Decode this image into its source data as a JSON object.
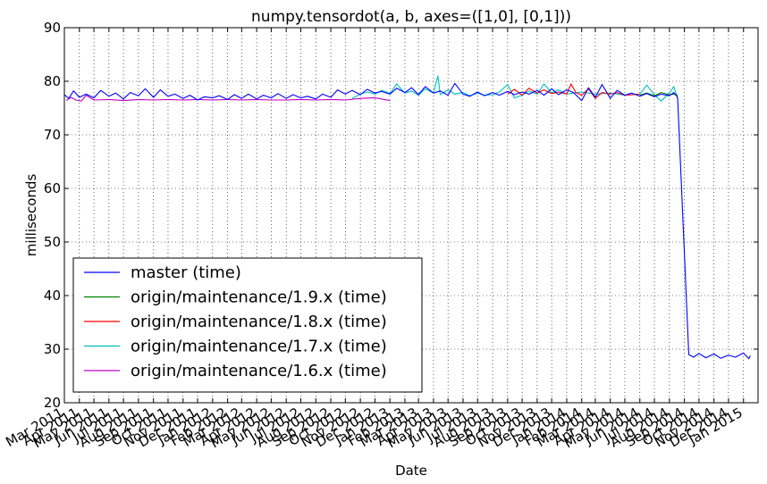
{
  "chart_data": {
    "type": "line",
    "title": "numpy.tensordot(a, b, axes=([1,0], [0,1]))",
    "xlabel": "Date",
    "ylabel": "milliseconds",
    "ylim": [
      20,
      90
    ],
    "yticks": [
      20,
      30,
      40,
      50,
      60,
      70,
      80,
      90
    ],
    "xlim": [
      "2011-03-01",
      "2015-01-31"
    ],
    "xticks": [
      {
        "date": "2011-03-01",
        "label": "Mar 2011"
      },
      {
        "date": "2011-04-01",
        "label": "Apr 2011"
      },
      {
        "date": "2011-05-01",
        "label": "May 2011"
      },
      {
        "date": "2011-06-01",
        "label": "Jun 2011"
      },
      {
        "date": "2011-07-01",
        "label": "Jul 2011"
      },
      {
        "date": "2011-08-01",
        "label": "Aug 2011"
      },
      {
        "date": "2011-09-01",
        "label": "Sep 2011"
      },
      {
        "date": "2011-10-01",
        "label": "Oct 2011"
      },
      {
        "date": "2011-11-01",
        "label": "Nov 2011"
      },
      {
        "date": "2011-12-01",
        "label": "Dec 2011"
      },
      {
        "date": "2012-01-01",
        "label": "Jan 2012"
      },
      {
        "date": "2012-02-01",
        "label": "Feb 2012"
      },
      {
        "date": "2012-03-01",
        "label": "Mar 2012"
      },
      {
        "date": "2012-04-01",
        "label": "Apr 2012"
      },
      {
        "date": "2012-05-01",
        "label": "May 2012"
      },
      {
        "date": "2012-06-01",
        "label": "Jun 2012"
      },
      {
        "date": "2012-07-01",
        "label": "Jul 2012"
      },
      {
        "date": "2012-08-01",
        "label": "Aug 2012"
      },
      {
        "date": "2012-09-01",
        "label": "Sep 2012"
      },
      {
        "date": "2012-10-01",
        "label": "Oct 2012"
      },
      {
        "date": "2012-11-01",
        "label": "Nov 2012"
      },
      {
        "date": "2012-12-01",
        "label": "Dec 2012"
      },
      {
        "date": "2013-01-01",
        "label": "Jan 2013"
      },
      {
        "date": "2013-02-01",
        "label": "Feb 2013"
      },
      {
        "date": "2013-03-01",
        "label": "Mar 2013"
      },
      {
        "date": "2013-04-01",
        "label": "Apr 2013"
      },
      {
        "date": "2013-05-01",
        "label": "May 2013"
      },
      {
        "date": "2013-06-01",
        "label": "Jun 2013"
      },
      {
        "date": "2013-07-01",
        "label": "Jul 2013"
      },
      {
        "date": "2013-08-01",
        "label": "Aug 2013"
      },
      {
        "date": "2013-09-01",
        "label": "Sep 2013"
      },
      {
        "date": "2013-10-01",
        "label": "Oct 2013"
      },
      {
        "date": "2013-11-01",
        "label": "Nov 2013"
      },
      {
        "date": "2013-12-01",
        "label": "Dec 2013"
      },
      {
        "date": "2014-01-01",
        "label": "Jan 2014"
      },
      {
        "date": "2014-02-01",
        "label": "Feb 2014"
      },
      {
        "date": "2014-03-01",
        "label": "Mar 2014"
      },
      {
        "date": "2014-04-01",
        "label": "Apr 2014"
      },
      {
        "date": "2014-05-01",
        "label": "May 2014"
      },
      {
        "date": "2014-06-01",
        "label": "Jun 2014"
      },
      {
        "date": "2014-07-01",
        "label": "Jul 2014"
      },
      {
        "date": "2014-08-01",
        "label": "Aug 2014"
      },
      {
        "date": "2014-09-01",
        "label": "Sep 2014"
      },
      {
        "date": "2014-10-01",
        "label": "Oct 2014"
      },
      {
        "date": "2014-11-01",
        "label": "Nov 2014"
      },
      {
        "date": "2014-12-01",
        "label": "Dec 2014"
      },
      {
        "date": "2015-01-01",
        "label": "Jan 2015"
      }
    ],
    "grid": true,
    "legend_position": "lower-left",
    "series": [
      {
        "name": "master (time)",
        "color": "#0000ff",
        "points": [
          [
            "2011-03-01",
            77.5
          ],
          [
            "2011-03-10",
            76.8
          ],
          [
            "2011-03-20",
            78.2
          ],
          [
            "2011-04-01",
            77.0
          ],
          [
            "2011-04-15",
            77.6
          ],
          [
            "2011-05-01",
            76.9
          ],
          [
            "2011-05-15",
            78.3
          ],
          [
            "2011-06-01",
            77.2
          ],
          [
            "2011-06-15",
            77.8
          ],
          [
            "2011-07-01",
            76.7
          ],
          [
            "2011-07-15",
            77.9
          ],
          [
            "2011-08-01",
            77.3
          ],
          [
            "2011-08-15",
            78.6
          ],
          [
            "2011-09-01",
            77.0
          ],
          [
            "2011-09-15",
            78.4
          ],
          [
            "2011-10-01",
            77.2
          ],
          [
            "2011-10-15",
            77.6
          ],
          [
            "2011-11-01",
            76.8
          ],
          [
            "2011-11-15",
            77.4
          ],
          [
            "2011-12-01",
            76.5
          ],
          [
            "2011-12-15",
            77.1
          ],
          [
            "2012-01-01",
            76.9
          ],
          [
            "2012-01-15",
            77.3
          ],
          [
            "2012-02-01",
            76.6
          ],
          [
            "2012-02-15",
            77.5
          ],
          [
            "2012-03-01",
            76.8
          ],
          [
            "2012-03-15",
            77.6
          ],
          [
            "2012-04-01",
            76.7
          ],
          [
            "2012-04-15",
            77.4
          ],
          [
            "2012-05-01",
            76.9
          ],
          [
            "2012-05-15",
            77.7
          ],
          [
            "2012-06-01",
            76.8
          ],
          [
            "2012-06-15",
            77.5
          ],
          [
            "2012-07-01",
            76.9
          ],
          [
            "2012-07-15",
            77.2
          ],
          [
            "2012-08-01",
            76.7
          ],
          [
            "2012-08-15",
            77.6
          ],
          [
            "2012-09-01",
            77.0
          ],
          [
            "2012-09-15",
            78.4
          ],
          [
            "2012-10-01",
            77.6
          ],
          [
            "2012-10-15",
            78.3
          ],
          [
            "2012-11-01",
            77.5
          ],
          [
            "2012-11-15",
            78.5
          ],
          [
            "2012-12-01",
            77.8
          ],
          [
            "2012-12-15",
            78.1
          ],
          [
            "2013-01-01",
            77.6
          ],
          [
            "2013-01-15",
            78.7
          ],
          [
            "2013-02-01",
            77.9
          ],
          [
            "2013-02-15",
            78.8
          ],
          [
            "2013-03-01",
            77.5
          ],
          [
            "2013-03-15",
            79.0
          ],
          [
            "2013-04-01",
            77.8
          ],
          [
            "2013-04-15",
            78.2
          ],
          [
            "2013-05-01",
            77.4
          ],
          [
            "2013-05-15",
            79.6
          ],
          [
            "2013-06-01",
            77.6
          ],
          [
            "2013-06-15",
            77.2
          ],
          [
            "2013-07-01",
            78.0
          ],
          [
            "2013-07-15",
            77.3
          ],
          [
            "2013-08-01",
            77.9
          ],
          [
            "2013-08-15",
            77.4
          ],
          [
            "2013-09-01",
            78.1
          ],
          [
            "2013-09-15",
            77.5
          ],
          [
            "2013-10-01",
            78.0
          ],
          [
            "2013-10-15",
            77.6
          ],
          [
            "2013-11-01",
            78.3
          ],
          [
            "2013-11-15",
            77.4
          ],
          [
            "2013-12-01",
            78.6
          ],
          [
            "2013-12-15",
            77.5
          ],
          [
            "2014-01-01",
            78.4
          ],
          [
            "2014-01-15",
            77.9
          ],
          [
            "2014-02-01",
            76.4
          ],
          [
            "2014-02-15",
            78.8
          ],
          [
            "2014-03-01",
            77.0
          ],
          [
            "2014-03-15",
            79.4
          ],
          [
            "2014-04-01",
            76.8
          ],
          [
            "2014-04-15",
            78.3
          ],
          [
            "2014-05-01",
            77.4
          ],
          [
            "2014-05-15",
            77.8
          ],
          [
            "2014-06-01",
            77.2
          ],
          [
            "2014-06-15",
            77.7
          ],
          [
            "2014-07-01",
            77.1
          ],
          [
            "2014-07-15",
            77.6
          ],
          [
            "2014-08-01",
            77.3
          ],
          [
            "2014-08-10",
            77.9
          ],
          [
            "2014-08-18",
            77.0
          ],
          [
            "2014-09-10",
            29.0
          ],
          [
            "2014-09-20",
            28.5
          ],
          [
            "2014-10-01",
            29.2
          ],
          [
            "2014-10-15",
            28.4
          ],
          [
            "2014-11-01",
            29.1
          ],
          [
            "2014-11-15",
            28.3
          ],
          [
            "2014-12-01",
            28.9
          ],
          [
            "2014-12-15",
            28.5
          ],
          [
            "2015-01-01",
            29.3
          ],
          [
            "2015-01-12",
            28.2
          ],
          [
            "2015-01-15",
            28.8
          ]
        ]
      },
      {
        "name": "origin/maintenance/1.9.x (time)",
        "color": "#008000",
        "points": [
          [
            "2014-06-01",
            77.4
          ],
          [
            "2014-06-15",
            77.8
          ],
          [
            "2014-07-01",
            77.3
          ],
          [
            "2014-07-15",
            77.9
          ],
          [
            "2014-08-01",
            77.5
          ],
          [
            "2014-08-10",
            77.6
          ],
          [
            "2014-08-18",
            77.4
          ]
        ]
      },
      {
        "name": "origin/maintenance/1.8.x (time)",
        "color": "#ff0000",
        "points": [
          [
            "2013-09-01",
            77.6
          ],
          [
            "2013-09-15",
            78.5
          ],
          [
            "2013-10-01",
            77.4
          ],
          [
            "2013-10-15",
            78.7
          ],
          [
            "2013-11-01",
            77.8
          ],
          [
            "2013-11-15",
            78.4
          ],
          [
            "2013-12-01",
            77.7
          ],
          [
            "2013-12-15",
            78.0
          ],
          [
            "2014-01-01",
            77.6
          ],
          [
            "2014-01-10",
            79.5
          ],
          [
            "2014-01-20",
            77.9
          ],
          [
            "2014-02-01",
            77.4
          ],
          [
            "2014-02-15",
            78.6
          ],
          [
            "2014-03-01",
            76.8
          ],
          [
            "2014-03-15",
            77.9
          ],
          [
            "2014-04-01",
            77.6
          ],
          [
            "2014-04-15",
            77.9
          ],
          [
            "2014-05-01",
            77.4
          ],
          [
            "2014-06-01",
            77.6
          ]
        ]
      },
      {
        "name": "origin/maintenance/1.7.x (time)",
        "color": "#00bfbf",
        "points": [
          [
            "2012-10-15",
            76.8
          ],
          [
            "2012-11-01",
            77.6
          ],
          [
            "2012-11-15",
            78.0
          ],
          [
            "2012-12-01",
            77.6
          ],
          [
            "2012-12-15",
            78.3
          ],
          [
            "2013-01-01",
            77.7
          ],
          [
            "2013-01-15",
            79.5
          ],
          [
            "2013-02-01",
            77.8
          ],
          [
            "2013-02-15",
            78.2
          ],
          [
            "2013-03-01",
            77.4
          ],
          [
            "2013-03-15",
            78.6
          ],
          [
            "2013-04-01",
            77.8
          ],
          [
            "2013-04-10",
            81.0
          ],
          [
            "2013-04-15",
            77.5
          ],
          [
            "2013-05-01",
            78.4
          ],
          [
            "2013-05-15",
            77.6
          ],
          [
            "2013-06-01",
            77.9
          ],
          [
            "2013-06-15",
            77.3
          ],
          [
            "2013-07-01",
            77.8
          ],
          [
            "2013-07-15",
            77.4
          ],
          [
            "2013-08-01",
            77.5
          ],
          [
            "2013-08-15",
            78.0
          ],
          [
            "2013-09-01",
            79.4
          ],
          [
            "2013-09-15",
            76.9
          ],
          [
            "2013-10-01",
            77.4
          ],
          [
            "2013-10-15",
            78.2
          ],
          [
            "2013-11-01",
            77.6
          ],
          [
            "2013-11-15",
            79.5
          ],
          [
            "2013-12-01",
            77.8
          ],
          [
            "2013-12-15",
            78.4
          ],
          [
            "2014-01-01",
            77.6
          ],
          [
            "2014-02-01",
            78.0
          ],
          [
            "2014-03-01",
            77.6
          ],
          [
            "2014-04-01",
            77.8
          ],
          [
            "2014-05-01",
            77.4
          ],
          [
            "2014-06-01",
            77.6
          ],
          [
            "2014-06-15",
            79.3
          ],
          [
            "2014-07-01",
            77.5
          ],
          [
            "2014-07-15",
            76.3
          ],
          [
            "2014-08-01",
            77.8
          ],
          [
            "2014-08-10",
            79.0
          ],
          [
            "2014-08-18",
            76.8
          ]
        ]
      },
      {
        "name": "origin/maintenance/1.6.x (time)",
        "color": "#bf00bf",
        "points": [
          [
            "2011-03-05",
            76.4
          ],
          [
            "2011-03-15",
            77.0
          ],
          [
            "2011-03-25",
            76.5
          ],
          [
            "2011-04-05",
            76.3
          ],
          [
            "2011-04-15",
            77.4
          ],
          [
            "2011-05-01",
            76.5
          ],
          [
            "2011-06-01",
            76.6
          ],
          [
            "2011-07-01",
            76.4
          ],
          [
            "2011-08-01",
            76.6
          ],
          [
            "2011-09-01",
            76.5
          ],
          [
            "2011-10-01",
            76.6
          ],
          [
            "2011-11-01",
            76.5
          ],
          [
            "2011-12-01",
            76.6
          ],
          [
            "2012-01-01",
            76.5
          ],
          [
            "2012-02-01",
            76.6
          ],
          [
            "2012-03-01",
            76.5
          ],
          [
            "2012-04-01",
            76.6
          ],
          [
            "2012-05-01",
            76.5
          ],
          [
            "2012-06-01",
            76.5
          ],
          [
            "2012-07-01",
            76.6
          ],
          [
            "2012-08-01",
            76.5
          ],
          [
            "2012-09-01",
            76.6
          ],
          [
            "2012-10-01",
            76.5
          ],
          [
            "2012-11-01",
            76.8
          ],
          [
            "2012-12-01",
            76.9
          ],
          [
            "2013-01-01",
            76.4
          ]
        ]
      }
    ]
  }
}
